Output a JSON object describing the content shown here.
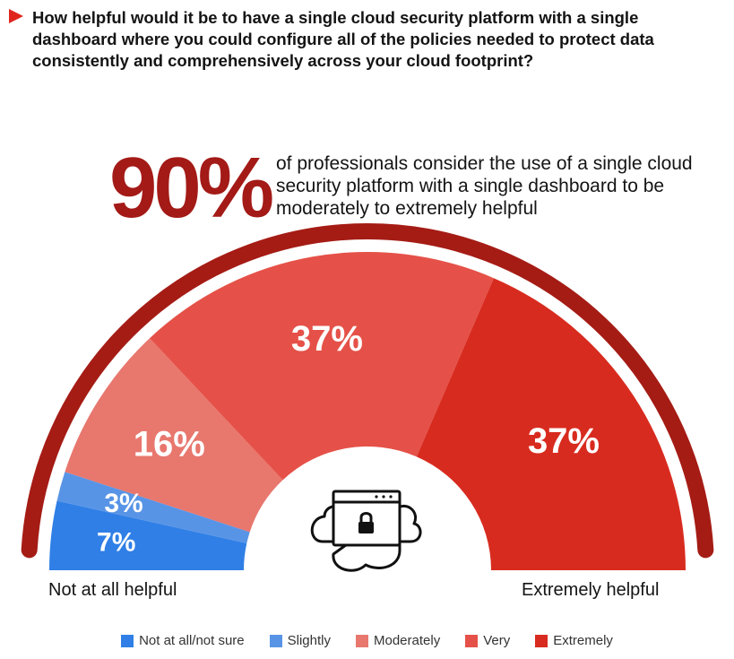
{
  "question": "How helpful would it be to have a single cloud security platform with a single dashboard where you could configure all of the policies needed to protect data consistently and comprehensively across your cloud footprint?",
  "headline": {
    "value": "90%",
    "text": "of professionals consider the use of a single cloud security platform with a single dashboard to be moderately to extremely helpful"
  },
  "scale_labels": {
    "left": "Not at all helpful",
    "right": "Extremely helpful"
  },
  "colors": {
    "outer_arc": "#a51c15",
    "stat": "#a31a17",
    "icon": "#111111"
  },
  "center_icon": "cloud-lock-browser-icon",
  "chart_data": {
    "type": "pie",
    "subtype": "semicircle",
    "categories": [
      "Not at all/not sure",
      "Slightly",
      "Moderately",
      "Very",
      "Extremely"
    ],
    "values": [
      7,
      3,
      16,
      37,
      37
    ],
    "labels": [
      "7%",
      "3%",
      "16%",
      "37%",
      "37%"
    ],
    "colors": [
      "#2f7fe6",
      "#5894e6",
      "#e8776e",
      "#e55148",
      "#d82b1f"
    ],
    "legend_position": "bottom"
  }
}
